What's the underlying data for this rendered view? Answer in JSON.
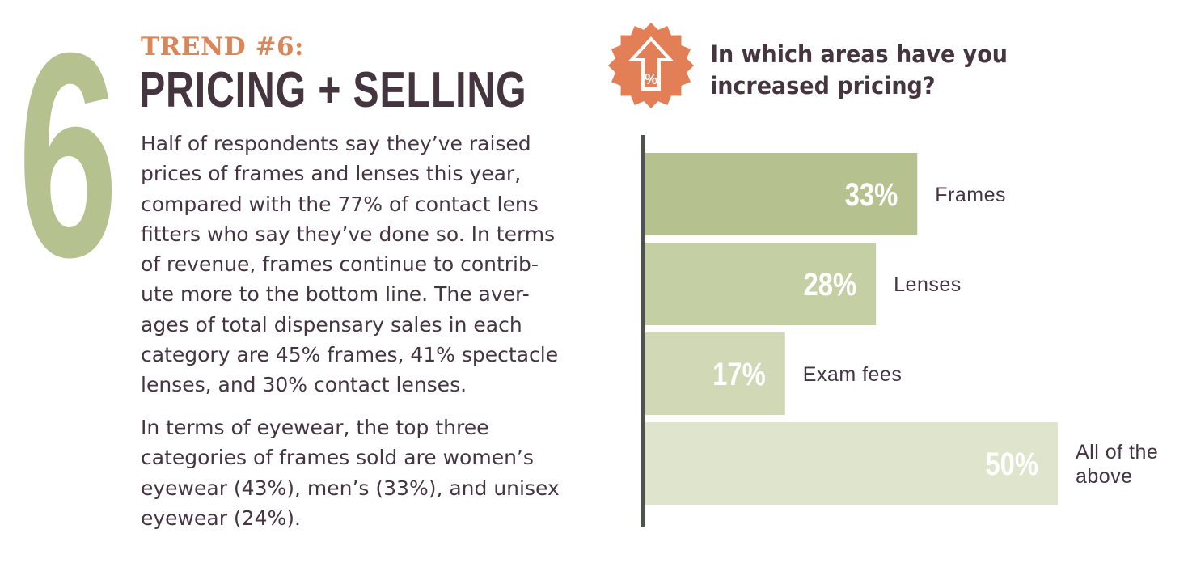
{
  "header": {
    "number": "6",
    "trend_label": "TREND #6:",
    "title": "PRICING + SELLING"
  },
  "body": {
    "p1_lines": [
      "Half of respondents say they’ve raised",
      "prices of frames and lenses this year,",
      "compared with the 77% of contact lens",
      "fitters who say they’ve done so. In terms",
      "of revenue, frames continue to contrib-",
      "ute more to the bottom line. The aver-",
      "ages of total dispensary sales in each",
      "category are 45% frames, 41% spectacle",
      "lenses, and 30% contact lenses."
    ],
    "p2_lines": [
      "In terms of eyewear, the top three",
      "categories of frames sold are women’s",
      "eyewear (43%), men’s (33%), and unisex",
      "eyewear (24%)."
    ]
  },
  "badge": {
    "icon": "price-increase-icon",
    "symbol": "%",
    "color": "#e27f57"
  },
  "question": {
    "line1": "In which areas have you",
    "line2": "increased pricing?"
  },
  "colors": {
    "title": "#45353f",
    "accent": "#d9865b",
    "six": "#b5c28f",
    "axis": "#4e5350"
  },
  "chart_data": {
    "type": "bar",
    "orientation": "horizontal",
    "categories": [
      "Frames",
      "Lenses",
      "Exam fees",
      "All of the above"
    ],
    "category_lines": [
      [
        "Frames"
      ],
      [
        "Lenses"
      ],
      [
        "Exam fees"
      ],
      [
        "All of the",
        "above"
      ]
    ],
    "values": [
      33,
      28,
      17,
      50
    ],
    "value_labels": [
      "33%",
      "28%",
      "17%",
      "50%"
    ],
    "bar_colors": [
      "#b5c28f",
      "#c5cfa4",
      "#d0d8b5",
      "#dfe4cc"
    ],
    "unit": "%",
    "xlim": [
      0,
      50
    ],
    "grid": false,
    "legend": "none",
    "title": "",
    "xlabel": "",
    "ylabel": ""
  }
}
